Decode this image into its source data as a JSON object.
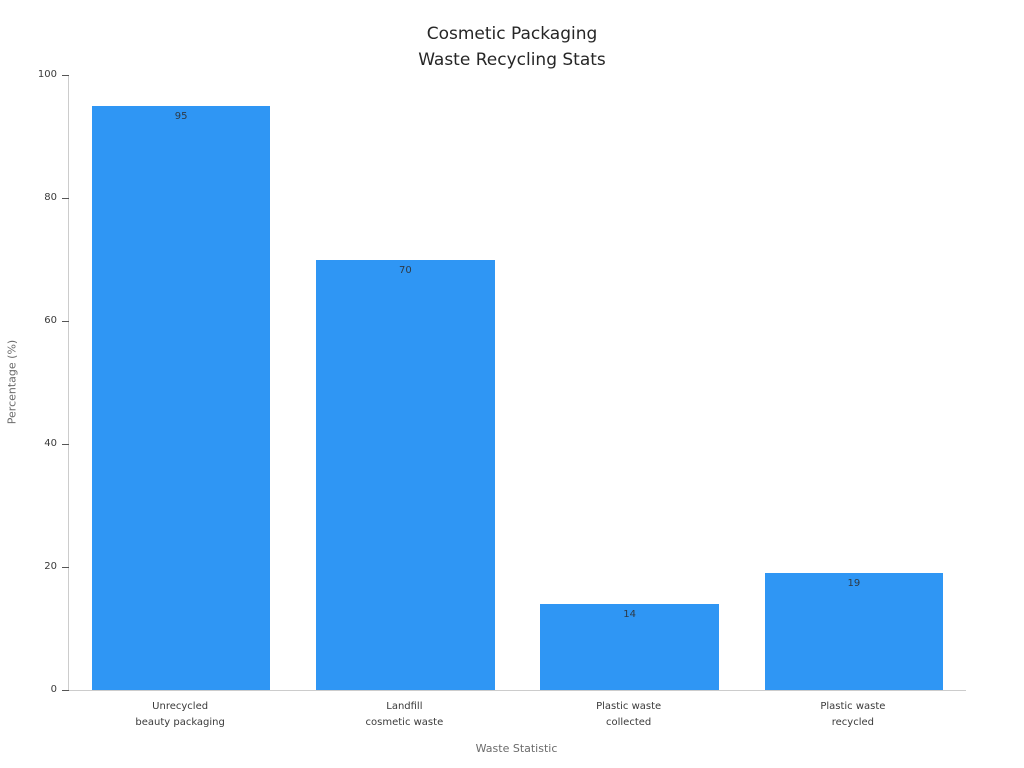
{
  "chart_data": {
    "type": "bar",
    "title_lines": [
      "Cosmetic Packaging",
      "Waste Recycling Stats"
    ],
    "title": "Cosmetic Packaging\nWaste Recycling Stats",
    "categories": [
      "Unrecycled\nbeauty packaging",
      "Landfill\ncosmetic waste",
      "Plastic waste\ncollected",
      "Plastic waste\nrecycled"
    ],
    "values": [
      95,
      70,
      14,
      19
    ],
    "value_labels": [
      "95",
      "70",
      "14",
      "19"
    ],
    "xlabel": "Waste Statistic",
    "ylabel": "Percentage (%)",
    "ylim": [
      0,
      100
    ],
    "yticks": [
      0,
      20,
      40,
      60,
      80,
      100
    ],
    "bar_color": "#2f96f4",
    "grid": false,
    "legend": null
  }
}
